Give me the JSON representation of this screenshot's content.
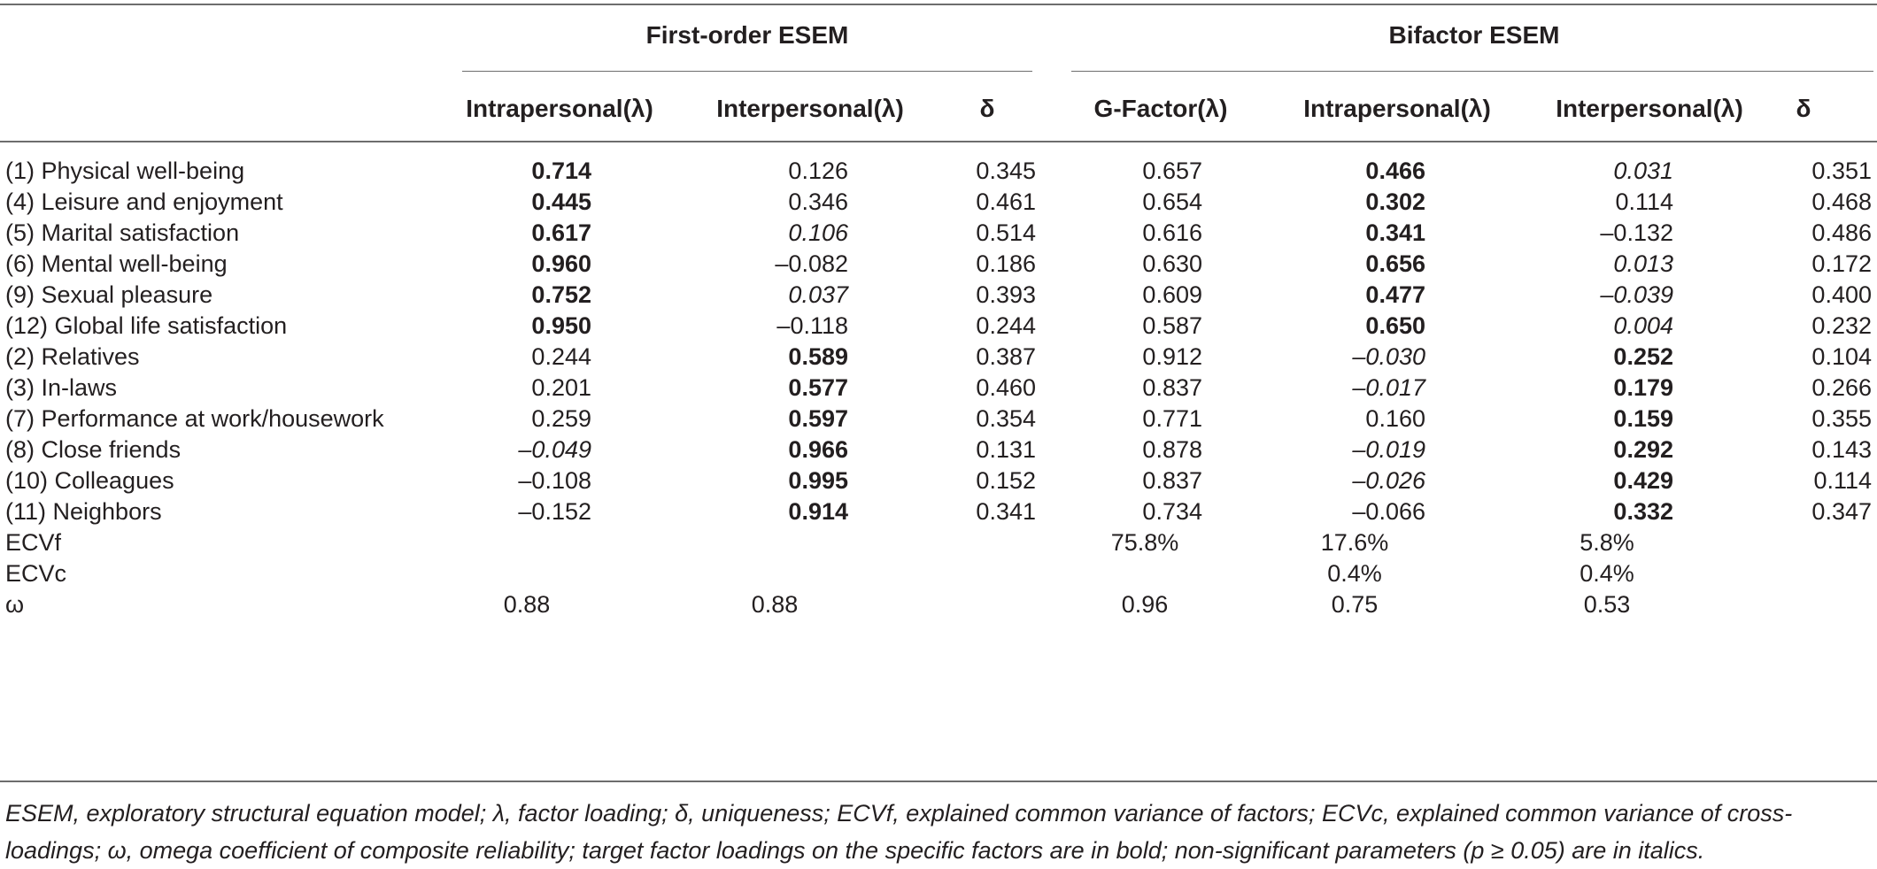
{
  "groups": {
    "first_order": "First-order ESEM",
    "bifactor": "Bifactor ESEM"
  },
  "columns": {
    "fo_intra": "Intrapersonal(λ)",
    "fo_inter": "Interpersonal(λ)",
    "fo_delta": "δ",
    "bf_g": "G-Factor(λ)",
    "bf_intra": "Intrapersonal(λ)",
    "bf_inter": "Interpersonal(λ)",
    "bf_delta": "δ"
  },
  "rows": [
    {
      "label": "(1) Physical well-being",
      "fo_intra": "0.714",
      "fo_inter": "0.126",
      "fo_delta": "0.345",
      "bf_g": "0.657",
      "bf_intra": "0.466",
      "bf_inter": "0.031",
      "bf_delta": "0.351"
    },
    {
      "label": "(4) Leisure and enjoyment",
      "fo_intra": "0.445",
      "fo_inter": "0.346",
      "fo_delta": "0.461",
      "bf_g": "0.654",
      "bf_intra": "0.302",
      "bf_inter": "0.114",
      "bf_delta": "0.468"
    },
    {
      "label": "(5) Marital satisfaction",
      "fo_intra": "0.617",
      "fo_inter": "0.106",
      "fo_delta": "0.514",
      "bf_g": "0.616",
      "bf_intra": "0.341",
      "bf_inter": "–0.132",
      "bf_delta": "0.486"
    },
    {
      "label": "(6) Mental well-being",
      "fo_intra": "0.960",
      "fo_inter": "–0.082",
      "fo_delta": "0.186",
      "bf_g": "0.630",
      "bf_intra": "0.656",
      "bf_inter": "0.013",
      "bf_delta": "0.172"
    },
    {
      "label": "(9) Sexual pleasure",
      "fo_intra": "0.752",
      "fo_inter": "0.037",
      "fo_delta": "0.393",
      "bf_g": "0.609",
      "bf_intra": "0.477",
      "bf_inter": "–0.039",
      "bf_delta": "0.400"
    },
    {
      "label": "(12) Global life satisfaction",
      "fo_intra": "0.950",
      "fo_inter": "–0.118",
      "fo_delta": "0.244",
      "bf_g": "0.587",
      "bf_intra": "0.650",
      "bf_inter": "0.004",
      "bf_delta": "0.232"
    },
    {
      "label": "(2) Relatives",
      "fo_intra": "0.244",
      "fo_inter": "0.589",
      "fo_delta": "0.387",
      "bf_g": "0.912",
      "bf_intra": "–0.030",
      "bf_inter": "0.252",
      "bf_delta": "0.104"
    },
    {
      "label": "(3) In-laws",
      "fo_intra": "0.201",
      "fo_inter": "0.577",
      "fo_delta": "0.460",
      "bf_g": "0.837",
      "bf_intra": "–0.017",
      "bf_inter": "0.179",
      "bf_delta": "0.266"
    },
    {
      "label": "(7) Performance at work/housework",
      "fo_intra": "0.259",
      "fo_inter": "0.597",
      "fo_delta": "0.354",
      "bf_g": "0.771",
      "bf_intra": "0.160",
      "bf_inter": "0.159",
      "bf_delta": "0.355"
    },
    {
      "label": "(8) Close friends",
      "fo_intra": "–0.049",
      "fo_inter": "0.966",
      "fo_delta": "0.131",
      "bf_g": "0.878",
      "bf_intra": "–0.019",
      "bf_inter": "0.292",
      "bf_delta": "0.143"
    },
    {
      "label": "(10) Colleagues",
      "fo_intra": "–0.108",
      "fo_inter": "0.995",
      "fo_delta": "0.152",
      "bf_g": "0.837",
      "bf_intra": "–0.026",
      "bf_inter": "0.429",
      "bf_delta": "0.114"
    },
    {
      "label": "(11) Neighbors",
      "fo_intra": "–0.152",
      "fo_inter": "0.914",
      "fo_delta": "0.341",
      "bf_g": "0.734",
      "bf_intra": "–0.066",
      "bf_inter": "0.332",
      "bf_delta": "0.347"
    }
  ],
  "summary": [
    {
      "label": "ECVf",
      "bf_g": "75.8%",
      "bf_intra": "17.6%",
      "bf_inter": "5.8%"
    },
    {
      "label": "ECVc",
      "bf_intra": "0.4%",
      "bf_inter": "0.4%"
    },
    {
      "label": "ω",
      "fo_intra": "0.88",
      "fo_inter": "0.88",
      "bf_g": "0.96",
      "bf_intra": "0.75",
      "bf_inter": "0.53"
    }
  ],
  "footnote": "ESEM, exploratory structural equation model; λ, factor loading; δ, uniqueness; ECVf, explained common variance of factors; ECVc, explained common variance of cross-loadings; ω, omega coefficient of composite reliability; target factor loadings on the specific factors are in bold; non-significant parameters (p ≥ 0.05) are in italics."
}
